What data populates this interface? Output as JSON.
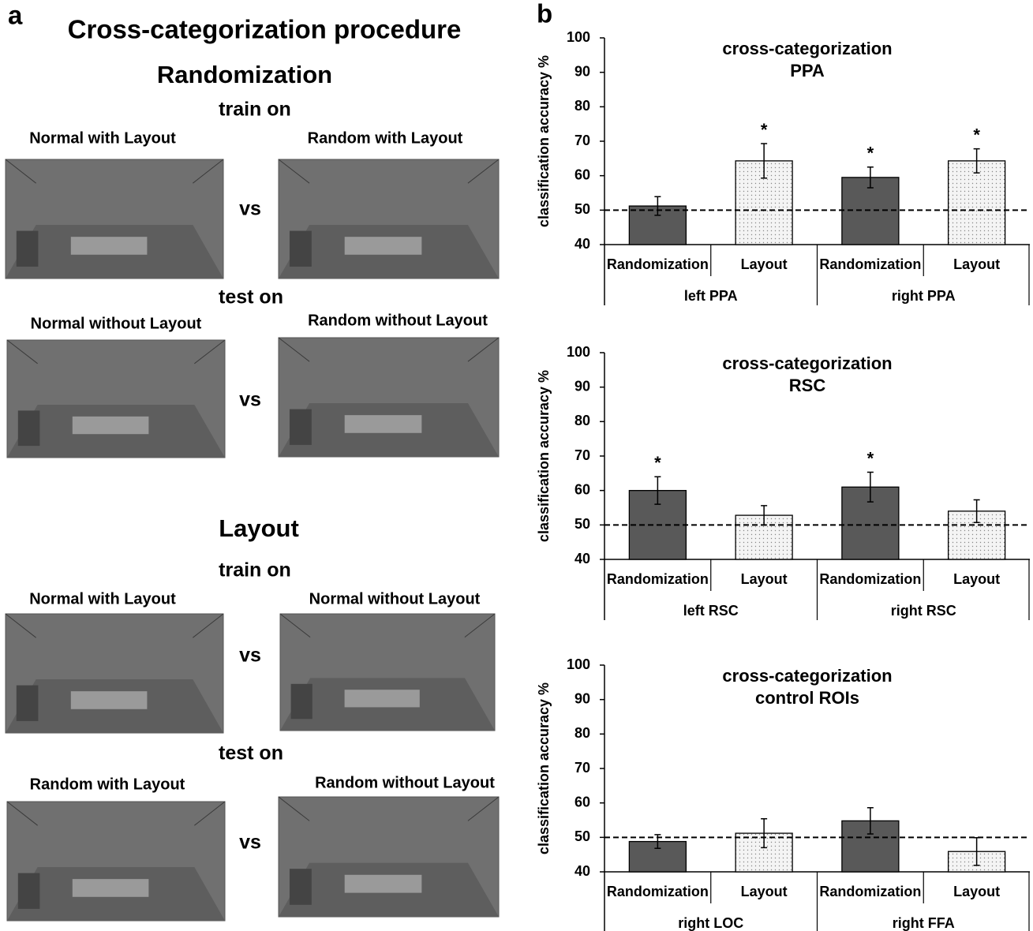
{
  "panel_a": {
    "label": "a",
    "title": "Cross-categorization procedure",
    "versus": "vs",
    "sections": [
      {
        "heading": "Randomization",
        "train_label": "train on",
        "train": [
          "Normal with Layout",
          "Random with Layout"
        ],
        "test_label": "test on",
        "test": [
          "Normal without Layout",
          "Random without Layout"
        ]
      },
      {
        "heading": "Layout",
        "train_label": "train on",
        "train": [
          "Normal with Layout",
          "Normal without Layout"
        ],
        "test_label": "test on",
        "test": [
          "Random with Layout",
          "Random without Layout"
        ]
      }
    ]
  },
  "panel_b": {
    "label": "b"
  },
  "chart_data": [
    {
      "type": "bar",
      "title": "cross-categorization",
      "subtitle": "PPA",
      "y_label": "classification accuracy %",
      "categories": [
        "Randomization",
        "Layout",
        "Randomization",
        "Layout"
      ],
      "groups": [
        "left PPA",
        "right PPA"
      ],
      "values": [
        51.2,
        64.3,
        59.5,
        64.3
      ],
      "errors": [
        2.7,
        5.0,
        3.0,
        3.5
      ],
      "annotations": [
        null,
        "*",
        "*",
        "*"
      ],
      "colors": [
        "#595959",
        "#f4f4f4",
        "#595959",
        "#f4f4f4"
      ],
      "fills": [
        "solid",
        "dotted",
        "solid",
        "dotted"
      ],
      "reference_line": 50,
      "ylim": [
        40,
        100
      ],
      "yticks": [
        40,
        50,
        60,
        70,
        80,
        90,
        100
      ]
    },
    {
      "type": "bar",
      "title": "cross-categorization",
      "subtitle": "RSC",
      "y_label": "classification accuracy %",
      "categories": [
        "Randomization",
        "Layout",
        "Randomization",
        "Layout"
      ],
      "groups": [
        "left RSC",
        "right RSC"
      ],
      "values": [
        60.0,
        52.8,
        61.0,
        54.0
      ],
      "errors": [
        4.0,
        2.8,
        4.3,
        3.3
      ],
      "annotations": [
        "*",
        null,
        "*",
        null
      ],
      "colors": [
        "#595959",
        "#f4f4f4",
        "#595959",
        "#f4f4f4"
      ],
      "fills": [
        "solid",
        "dotted",
        "solid",
        "dotted"
      ],
      "reference_line": 50,
      "ylim": [
        40,
        100
      ],
      "yticks": [
        40,
        50,
        60,
        70,
        80,
        90,
        100
      ]
    },
    {
      "type": "bar",
      "title": "cross-categorization",
      "subtitle": "control ROIs",
      "y_label": "classification accuracy %",
      "categories": [
        "Randomization",
        "Layout",
        "Randomization",
        "Layout"
      ],
      "groups": [
        "right LOC",
        "right FFA"
      ],
      "values": [
        48.8,
        51.2,
        54.8,
        45.9
      ],
      "errors": [
        2.0,
        4.2,
        3.8,
        4.0
      ],
      "annotations": [
        null,
        null,
        null,
        null
      ],
      "colors": [
        "#595959",
        "#f4f4f4",
        "#595959",
        "#f4f4f4"
      ],
      "fills": [
        "solid",
        "dotted",
        "solid",
        "dotted"
      ],
      "reference_line": 50,
      "ylim": [
        40,
        100
      ],
      "yticks": [
        40,
        50,
        60,
        70,
        80,
        90,
        100
      ]
    }
  ]
}
